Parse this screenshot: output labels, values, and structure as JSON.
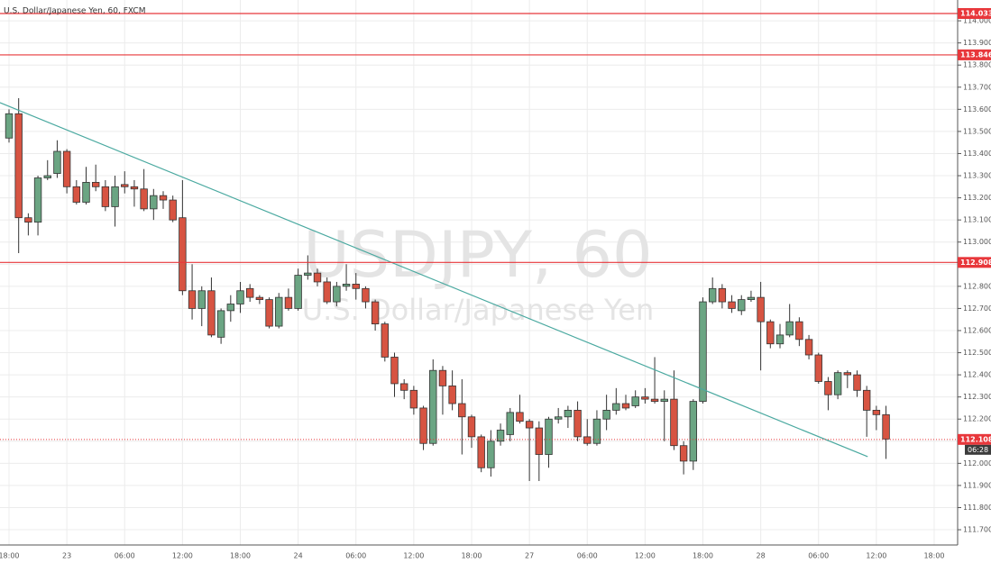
{
  "chart_data": {
    "type": "candlestick",
    "title": "U.S. Dollar/Japanese Yen, 60, FXCM",
    "watermark": {
      "symbol": "USDJPY, 60",
      "description": "U.S. Dollar/Japanese Yen"
    },
    "categories": [
      "18:00",
      null,
      null,
      null,
      null,
      null,
      "23",
      null,
      null,
      null,
      null,
      null,
      "06:00",
      null,
      null,
      null,
      null,
      null,
      "12:00",
      null,
      null,
      null,
      null,
      null,
      "18:00",
      null,
      null,
      null,
      null,
      null,
      "24",
      null,
      null,
      null,
      null,
      null,
      "06:00",
      null,
      null,
      null,
      null,
      null,
      "12:00",
      null,
      null,
      null,
      null,
      null,
      "18:00",
      null,
      null,
      null,
      null,
      null,
      "27",
      null,
      null,
      null,
      null,
      null,
      "06:00",
      null,
      null,
      null,
      null,
      null,
      "12:00",
      null,
      null,
      null,
      null,
      null,
      "18:00",
      null,
      null,
      null,
      null,
      null,
      "28",
      null,
      null,
      null,
      null,
      null,
      "06:00",
      null,
      null,
      null,
      null,
      null,
      "12:00",
      null,
      null,
      null,
      null,
      null,
      "18:00"
    ],
    "open": [
      113.47,
      113.58,
      113.11,
      113.09,
      113.29,
      113.31,
      113.41,
      113.25,
      113.18,
      113.27,
      113.25,
      113.16,
      113.26,
      113.25,
      113.24,
      113.15,
      113.21,
      113.19,
      113.11,
      112.78,
      112.7,
      112.78,
      112.57,
      112.69,
      112.72,
      112.79,
      112.75,
      112.74,
      112.62,
      112.75,
      112.7,
      112.85,
      112.86,
      112.82,
      112.73,
      112.8,
      112.81,
      112.79,
      112.73,
      112.63,
      112.48,
      112.36,
      112.33,
      112.25,
      112.09,
      112.42,
      112.35,
      112.27,
      112.21,
      112.12,
      111.98,
      112.1,
      112.13,
      112.23,
      112.19,
      112.16,
      112.04,
      112.2,
      112.21,
      112.24,
      112.12,
      112.09,
      112.2,
      112.24,
      112.27,
      112.26,
      112.3,
      112.29,
      112.28,
      112.29,
      112.08,
      112.01,
      112.28,
      112.73,
      112.79,
      112.73,
      112.69,
      112.74,
      112.75,
      112.64,
      112.54,
      112.58,
      112.64,
      112.56,
      112.49,
      112.37,
      112.31,
      112.41,
      112.4,
      112.33,
      112.24,
      112.22,
      null,
      null,
      null,
      null,
      null
    ],
    "high": [
      113.6,
      113.65,
      113.13,
      113.3,
      113.37,
      113.46,
      113.42,
      113.28,
      113.34,
      113.35,
      113.28,
      113.3,
      113.32,
      113.28,
      113.33,
      113.24,
      113.23,
      113.21,
      113.28,
      112.9,
      112.8,
      112.84,
      112.7,
      112.76,
      112.82,
      112.81,
      112.76,
      112.75,
      112.77,
      112.79,
      112.88,
      112.94,
      112.88,
      112.84,
      112.82,
      112.9,
      112.86,
      112.8,
      112.74,
      112.64,
      112.5,
      112.38,
      112.35,
      112.26,
      112.47,
      112.44,
      112.42,
      112.38,
      112.22,
      112.13,
      112.15,
      112.18,
      112.25,
      112.31,
      112.2,
      112.19,
      112.21,
      112.25,
      112.26,
      112.28,
      112.2,
      112.24,
      112.31,
      112.34,
      112.31,
      112.33,
      112.34,
      112.48,
      112.33,
      112.42,
      112.1,
      112.29,
      112.75,
      112.84,
      112.81,
      112.76,
      112.76,
      112.78,
      112.82,
      112.65,
      112.63,
      112.72,
      112.66,
      112.58,
      112.5,
      112.39,
      112.42,
      112.42,
      112.42,
      112.35,
      112.26,
      112.26,
      null,
      null,
      null,
      null,
      null
    ],
    "low": [
      113.45,
      112.95,
      113.03,
      113.03,
      113.28,
      113.29,
      113.22,
      113.17,
      113.17,
      113.23,
      113.14,
      113.07,
      113.22,
      113.16,
      113.14,
      113.1,
      113.15,
      113.09,
      112.76,
      112.65,
      112.62,
      112.57,
      112.54,
      112.64,
      112.68,
      112.73,
      112.72,
      112.61,
      112.61,
      112.69,
      112.69,
      112.83,
      112.8,
      112.72,
      112.71,
      112.78,
      112.74,
      112.7,
      112.6,
      112.46,
      112.3,
      112.29,
      112.22,
      112.06,
      112.08,
      112.22,
      112.24,
      112.04,
      112.07,
      111.96,
      111.94,
      112.08,
      112.1,
      112.18,
      111.92,
      111.92,
      111.98,
      112.18,
      112.16,
      112.1,
      112.08,
      112.08,
      112.15,
      112.22,
      112.24,
      112.25,
      112.27,
      112.27,
      112.1,
      112.06,
      111.95,
      111.97,
      112.27,
      112.72,
      112.7,
      112.68,
      112.67,
      112.73,
      112.42,
      112.52,
      112.52,
      112.57,
      112.53,
      112.47,
      112.36,
      112.24,
      112.29,
      112.34,
      112.3,
      112.12,
      112.15,
      112.02,
      null,
      null,
      null,
      null,
      null
    ],
    "close": [
      113.58,
      113.11,
      113.09,
      113.29,
      113.3,
      113.41,
      113.25,
      113.18,
      113.27,
      113.25,
      113.16,
      113.25,
      113.25,
      113.24,
      113.15,
      113.21,
      113.19,
      113.1,
      112.78,
      112.7,
      112.78,
      112.58,
      112.69,
      112.72,
      112.78,
      112.75,
      112.74,
      112.62,
      112.75,
      112.7,
      112.85,
      112.86,
      112.82,
      112.73,
      112.8,
      112.81,
      112.79,
      112.73,
      112.63,
      112.48,
      112.36,
      112.33,
      112.25,
      112.09,
      112.42,
      112.35,
      112.27,
      112.21,
      112.12,
      111.98,
      112.1,
      112.15,
      112.23,
      112.19,
      112.16,
      112.04,
      112.2,
      112.21,
      112.24,
      112.12,
      112.09,
      112.2,
      112.24,
      112.27,
      112.25,
      112.3,
      112.29,
      112.28,
      112.29,
      112.08,
      112.01,
      112.28,
      112.73,
      112.79,
      112.73,
      112.7,
      112.74,
      112.75,
      112.64,
      112.54,
      112.58,
      112.64,
      112.56,
      112.49,
      112.37,
      112.31,
      112.41,
      112.4,
      112.33,
      112.24,
      112.22,
      112.11,
      null,
      null,
      null,
      null,
      null
    ],
    "up_color": "#6ba583",
    "down_color": "#d75442",
    "levels": [
      114.033,
      113.846,
      112.908
    ],
    "level_color": "#e8373b",
    "last_price": 112.108,
    "countdown": "06:28",
    "trendline": {
      "x": [
        -0.94,
        89.1
      ],
      "y": [
        113.63,
        112.03
      ],
      "color": "#4aa9a0"
    },
    "ylim": [
      111.631,
      114.094
    ],
    "yticks": [
      {
        "value": 111.7,
        "label": "111.700"
      },
      {
        "value": 111.8,
        "label": "111.800"
      },
      {
        "value": 111.9,
        "label": "111.900"
      },
      {
        "value": 112.0,
        "label": "112.000"
      },
      {
        "value": 112.1,
        "label": "112.100"
      },
      {
        "value": 112.2,
        "label": "112.200"
      },
      {
        "value": 112.3,
        "label": "112.300"
      },
      {
        "value": 112.4,
        "label": "112.400"
      },
      {
        "value": 112.5,
        "label": "112.500"
      },
      {
        "value": 112.6,
        "label": "112.600"
      },
      {
        "value": 112.7,
        "label": "112.700"
      },
      {
        "value": 112.8,
        "label": "112.800"
      },
      {
        "value": 112.9,
        "label": "112.900"
      },
      {
        "value": 113.0,
        "label": "113.000"
      },
      {
        "value": 113.1,
        "label": "113.100"
      },
      {
        "value": 113.2,
        "label": "113.200"
      },
      {
        "value": 113.3,
        "label": "113.300"
      },
      {
        "value": 113.4,
        "label": "113.400"
      },
      {
        "value": 113.5,
        "label": "113.500"
      },
      {
        "value": 113.6,
        "label": "113.600"
      },
      {
        "value": 113.7,
        "label": "113.700"
      },
      {
        "value": 113.8,
        "label": "113.800"
      },
      {
        "value": 113.9,
        "label": "113.900"
      },
      {
        "value": 114.0,
        "label": "114.000"
      }
    ],
    "grid": true
  }
}
